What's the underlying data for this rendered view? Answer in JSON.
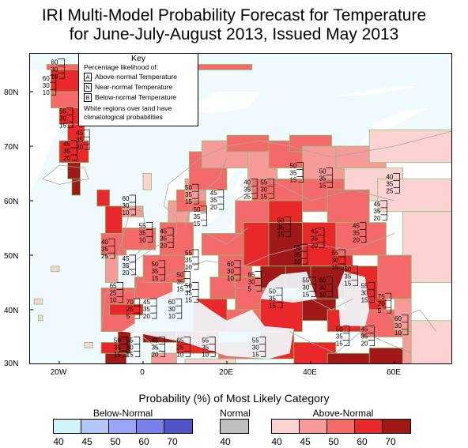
{
  "title_line1": "IRI Multi-Model Probability Forecast for Temperature",
  "title_line2": "for June-July-August 2013, Issued May 2013",
  "map": {
    "lat_labels": [
      "80N",
      "70N",
      "60N",
      "50N",
      "40N",
      "30N"
    ],
    "lon_labels": [
      "20W",
      "0",
      "20E",
      "40E",
      "60E"
    ],
    "colors": {
      "ocean": "#f0fafe",
      "land": "#ffffff",
      "an40": "#fcd2d2",
      "an45": "#f79a9a",
      "an50": "#f46a6a",
      "an60": "#e8282a",
      "an70": "#a01818",
      "cell_outline": "#7cc96b",
      "border": "#a6a6a6"
    },
    "annotations": [
      {
        "a": "60",
        "n": "30",
        "b": "10"
      },
      {
        "a": "60",
        "n": "30",
        "b": "10"
      },
      {
        "a": "55",
        "n": "30",
        "b": "15"
      },
      {
        "a": "45",
        "n": "35",
        "b": "20"
      },
      {
        "a": "45",
        "n": "35",
        "b": "20"
      },
      {
        "a": "50",
        "n": "35",
        "b": "15"
      },
      {
        "a": "50",
        "n": "35",
        "b": "15"
      },
      {
        "a": "45",
        "n": "35",
        "b": "20"
      },
      {
        "a": "40",
        "n": "35",
        "b": "25"
      },
      {
        "a": "55",
        "n": "30",
        "b": "15"
      },
      {
        "a": "50",
        "n": "35",
        "b": "15"
      },
      {
        "a": "50",
        "n": "35",
        "b": "15"
      },
      {
        "a": "40",
        "n": "35",
        "b": "25"
      },
      {
        "a": "45",
        "n": "35",
        "b": "20"
      },
      {
        "a": "45",
        "n": "35",
        "b": "20"
      },
      {
        "a": "60",
        "n": "30",
        "b": "10"
      },
      {
        "a": "55",
        "n": "35",
        "b": "10"
      },
      {
        "a": "45",
        "n": "35",
        "b": "20"
      },
      {
        "a": "55",
        "n": "35",
        "b": "10"
      },
      {
        "a": "40",
        "n": "35",
        "b": "25"
      },
      {
        "a": "45",
        "n": "35",
        "b": "20"
      },
      {
        "a": "50",
        "n": "35",
        "b": "15"
      },
      {
        "a": "50",
        "n": "35",
        "b": "15"
      },
      {
        "a": "60",
        "n": "30",
        "b": "10"
      },
      {
        "a": "65",
        "n": "30",
        "b": "5"
      },
      {
        "a": "50",
        "n": "35",
        "b": "15"
      },
      {
        "a": "55",
        "n": "35",
        "b": "10"
      },
      {
        "a": "45",
        "n": "35",
        "b": "20"
      },
      {
        "a": "55",
        "n": "30",
        "b": "15"
      },
      {
        "a": "50",
        "n": "35",
        "b": "15"
      },
      {
        "a": "55",
        "n": "30",
        "b": "15"
      },
      {
        "a": "55",
        "n": "30",
        "b": "15"
      },
      {
        "a": "60",
        "n": "30",
        "b": "10"
      },
      {
        "a": "50",
        "n": "35",
        "b": "15"
      },
      {
        "a": "65",
        "n": "25",
        "b": "10"
      },
      {
        "a": "70",
        "n": "25",
        "b": "5"
      },
      {
        "a": "45",
        "n": "35",
        "b": "20"
      },
      {
        "a": "60",
        "n": "30",
        "b": "10"
      },
      {
        "a": "50",
        "n": "35",
        "b": "15"
      },
      {
        "a": "50",
        "n": "35",
        "b": "15"
      },
      {
        "a": "55",
        "n": "30",
        "b": "15"
      },
      {
        "a": "45",
        "n": "35",
        "b": "20"
      },
      {
        "a": "65",
        "n": "25",
        "b": "10"
      },
      {
        "a": "55",
        "n": "35",
        "b": "10"
      },
      {
        "a": "55",
        "n": "30",
        "b": "15"
      },
      {
        "a": "50",
        "n": "35",
        "b": "15"
      },
      {
        "a": "45",
        "n": "35",
        "b": "20"
      },
      {
        "a": "75",
        "n": "20",
        "b": "5"
      },
      {
        "a": "60",
        "n": "30",
        "b": "10"
      }
    ]
  },
  "key": {
    "title": "Key",
    "subtitle": "Percentage likelihood of:",
    "rows": [
      {
        "letter": "A",
        "label": "Above-normal Temperature"
      },
      {
        "letter": "N",
        "label": "Near-normal Temperature"
      },
      {
        "letter": "B",
        "label": "Below-normal Temperature"
      }
    ],
    "note_line1": "White regions over land have",
    "note_line2": "climatological probabilities"
  },
  "legend": {
    "title": "Probability (%) of Most Likely Category",
    "below": {
      "title": "Below-Normal",
      "colors": [
        "#cff5fb",
        "#b3c6f7",
        "#9aa6f4",
        "#7a80ea",
        "#4f54c7"
      ],
      "ticks": [
        "40",
        "45",
        "50",
        "60",
        "70"
      ]
    },
    "normal": {
      "title": "Normal",
      "colors": [
        "#c0c0c0"
      ],
      "ticks": [
        "40"
      ]
    },
    "above": {
      "title": "Above-Normal",
      "colors": [
        "#fcd2d2",
        "#f79a9a",
        "#f46a6a",
        "#e8282a",
        "#a01818"
      ],
      "ticks": [
        "40",
        "45",
        "50",
        "60",
        "70"
      ]
    }
  }
}
